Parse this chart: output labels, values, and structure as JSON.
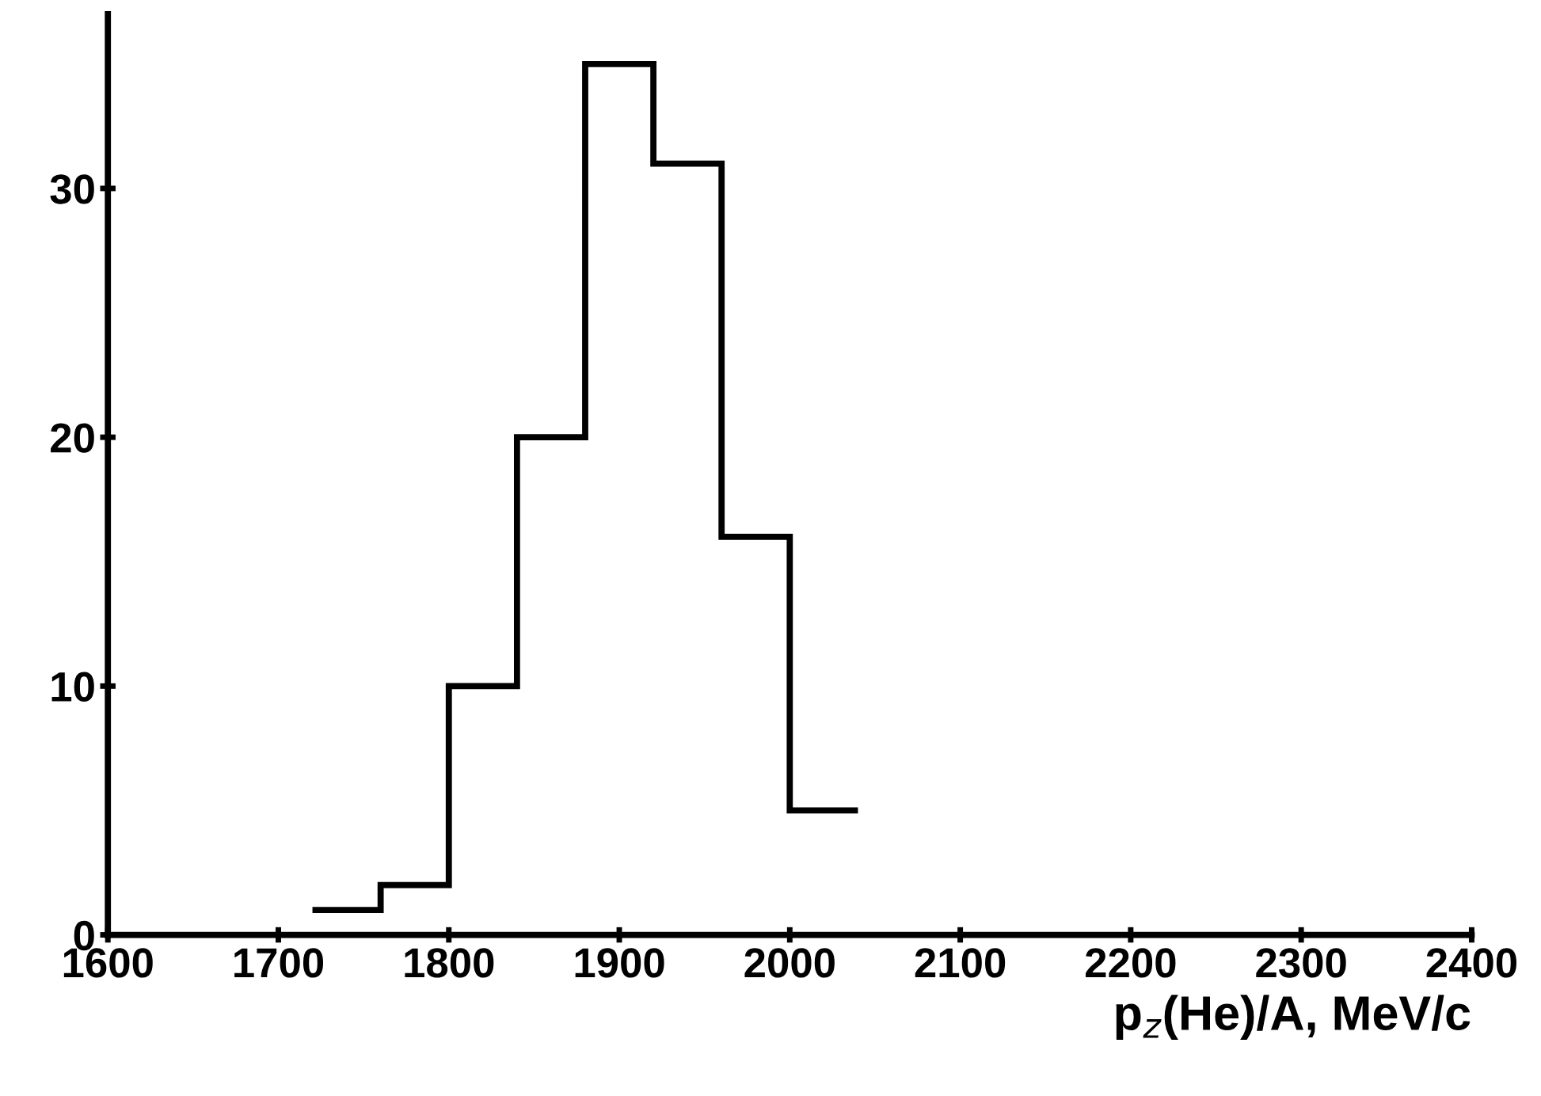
{
  "chart_data": {
    "type": "histogram",
    "xlabel": "p$_{z}$(He)/A, MeV/c",
    "bins": [
      1720,
      1760,
      1800,
      1840,
      1880,
      1920,
      1960,
      2000,
      2040
    ],
    "values": [
      1,
      2,
      10,
      20,
      35,
      31,
      16,
      5
    ],
    "color": "#000000",
    "xlim": [
      1600,
      2400
    ],
    "xticks": [
      1600,
      1700,
      1800,
      1900,
      2000,
      2100,
      2200,
      2300,
      2400
    ],
    "ylim": [
      0,
      37
    ],
    "yticks": [
      0,
      10,
      20,
      30
    ],
    "grid": false,
    "legend": false
  }
}
